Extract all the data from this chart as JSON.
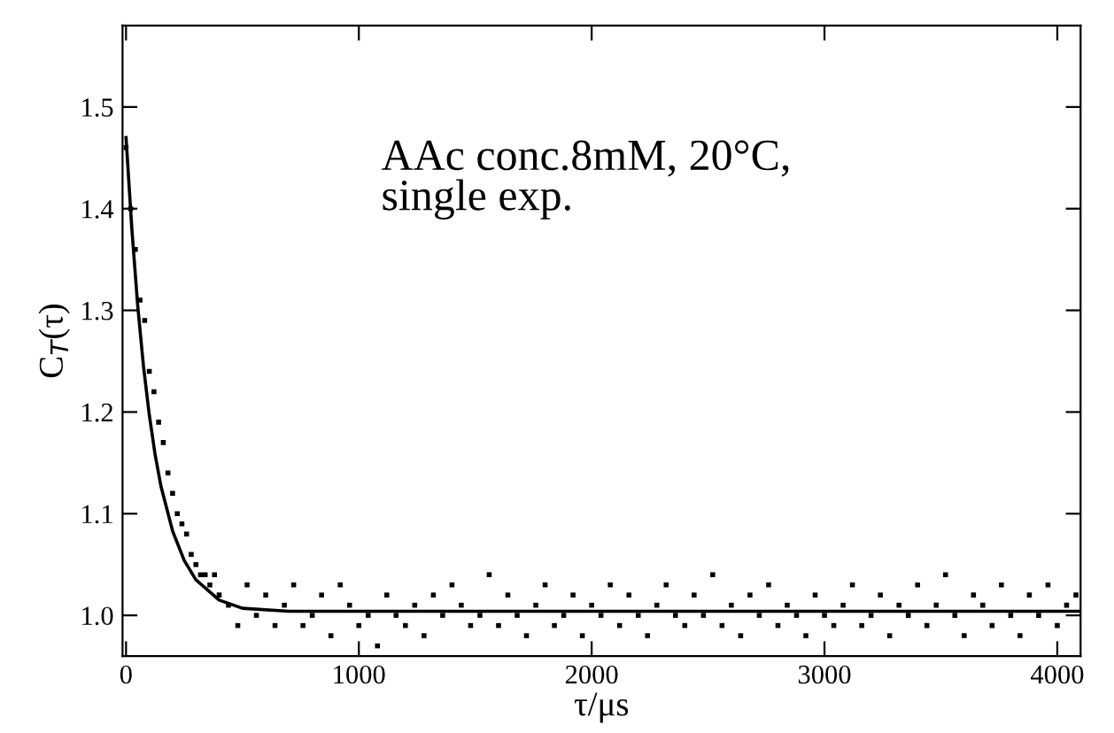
{
  "chart_data": {
    "type": "scatter",
    "xlabel": "τ/μs",
    "ylabel": "C$_{T}$(τ)",
    "annotations": [
      "AAc conc.8mM, 20°C,\nsingle exp."
    ],
    "xlim": [
      -15,
      4100
    ],
    "ylim": [
      0.96,
      1.58
    ],
    "xticks": [
      0,
      1000,
      2000,
      3000,
      4000
    ],
    "yticks": [
      {
        "value": 1.0,
        "label": "1.0"
      },
      1.1,
      1.2,
      1.3,
      1.4,
      1.5
    ],
    "grid": false,
    "series": [
      {
        "marker": "square",
        "color": "#000000",
        "x": [
          0,
          20,
          40,
          60,
          80,
          100,
          120,
          140,
          160,
          180,
          200,
          220,
          240,
          260,
          280,
          300,
          320,
          340,
          360,
          380,
          400,
          440,
          480,
          520,
          560,
          600,
          640,
          680,
          720,
          760,
          800,
          840,
          880,
          920,
          960,
          1000,
          1040,
          1080,
          1120,
          1160,
          1200,
          1240,
          1280,
          1320,
          1360,
          1400,
          1440,
          1480,
          1520,
          1560,
          1600,
          1640,
          1680,
          1720,
          1760,
          1800,
          1840,
          1880,
          1920,
          1960,
          2000,
          2040,
          2080,
          2120,
          2160,
          2200,
          2240,
          2280,
          2320,
          2360,
          2400,
          2440,
          2480,
          2520,
          2560,
          2600,
          2640,
          2680,
          2720,
          2760,
          2800,
          2840,
          2880,
          2920,
          2960,
          3000,
          3040,
          3080,
          3120,
          3160,
          3200,
          3240,
          3280,
          3320,
          3360,
          3400,
          3440,
          3480,
          3520,
          3560,
          3600,
          3640,
          3680,
          3720,
          3760,
          3800,
          3840,
          3880,
          3920,
          3960,
          4000,
          4040,
          4080
        ],
        "values": [
          1.46,
          1.4,
          1.36,
          1.31,
          1.29,
          1.24,
          1.22,
          1.19,
          1.17,
          1.14,
          1.12,
          1.1,
          1.09,
          1.08,
          1.06,
          1.05,
          1.04,
          1.04,
          1.03,
          1.04,
          1.02,
          1.01,
          0.99,
          1.03,
          1.0,
          1.02,
          0.99,
          1.01,
          1.03,
          0.99,
          1.0,
          1.02,
          0.98,
          1.03,
          1.01,
          0.99,
          1.0,
          0.97,
          1.02,
          1.0,
          0.99,
          1.01,
          0.98,
          1.02,
          1.0,
          1.03,
          1.01,
          0.99,
          1.0,
          1.04,
          0.99,
          1.02,
          1.0,
          0.98,
          1.01,
          1.03,
          0.99,
          1.0,
          1.02,
          0.98,
          1.01,
          1.0,
          1.03,
          0.99,
          1.02,
          1.0,
          0.98,
          1.01,
          1.03,
          1.0,
          0.99,
          1.02,
          1.0,
          1.04,
          0.99,
          1.01,
          0.98,
          1.02,
          1.0,
          1.03,
          0.99,
          1.01,
          1.0,
          0.98,
          1.02,
          1.0,
          0.99,
          1.01,
          1.03,
          0.99,
          1.0,
          1.02,
          0.98,
          1.01,
          1.0,
          1.03,
          0.99,
          1.01,
          1.04,
          1.0,
          0.98,
          1.02,
          1.01,
          0.99,
          1.03,
          1.0,
          0.98,
          1.02,
          1.0,
          1.03,
          0.99,
          1.01,
          1.02
        ]
      },
      {
        "type": "line",
        "color": "#000000",
        "x": [
          0,
          25,
          50,
          75,
          100,
          125,
          150,
          200,
          250,
          300,
          400,
          500,
          700,
          1000,
          2000,
          3000,
          4100
        ],
        "values": [
          1.47,
          1.38,
          1.305,
          1.245,
          1.197,
          1.158,
          1.127,
          1.083,
          1.054,
          1.035,
          1.015,
          1.007,
          1.004,
          1.004,
          1.004,
          1.004,
          1.004
        ]
      }
    ]
  }
}
